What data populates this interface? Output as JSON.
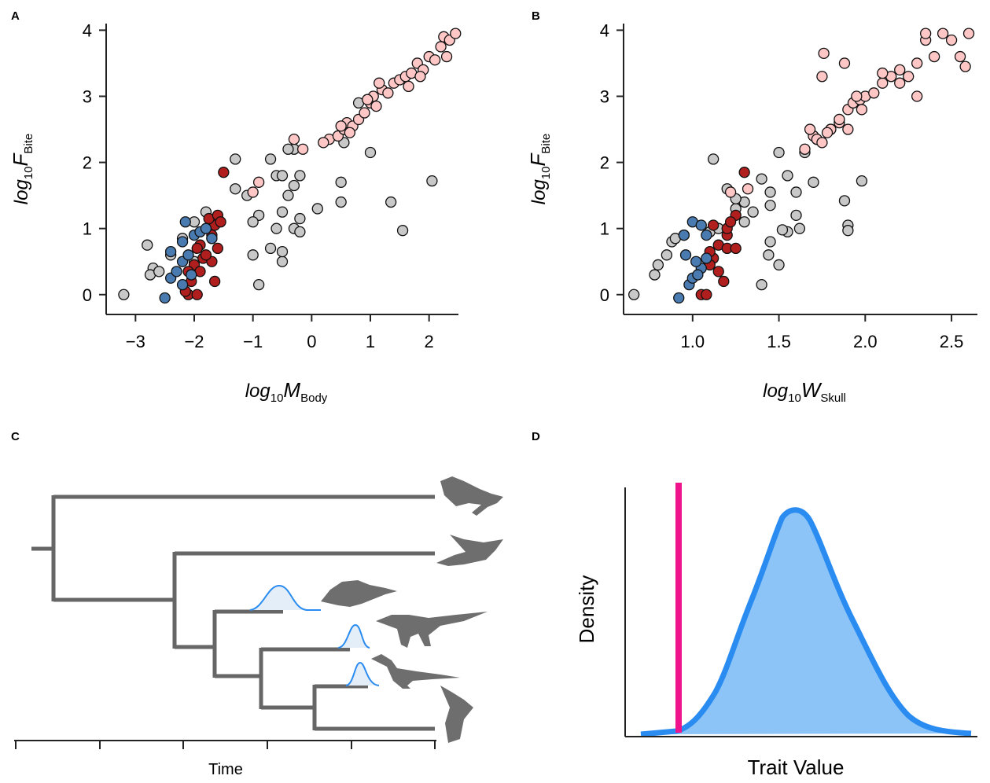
{
  "chart_data": [
    {
      "type": "scatter",
      "panel_label": "A",
      "xlabel": {
        "base": "log",
        "base_sub": "10",
        "var": "M",
        "var_sub": "Body"
      },
      "ylabel": {
        "base": "log",
        "base_sub": "10",
        "var": "F",
        "var_sub": "Bite"
      },
      "xlim": [
        -3.5,
        2.5
      ],
      "ylim": [
        -0.3,
        4.1
      ],
      "xticks": [
        {
          "value": -3,
          "label": "−3"
        },
        {
          "value": -2,
          "label": "−2"
        },
        {
          "value": -1,
          "label": "−1"
        },
        0,
        1,
        2
      ],
      "yticks": [
        0,
        1,
        2,
        3,
        4
      ],
      "series": [
        {
          "color": "#c8c8c8",
          "x": [
            -3.2,
            -2.8,
            -2.7,
            -2.75,
            -2.6,
            -2.4,
            -2.2,
            -2.0,
            -1.8,
            -1.6,
            -1.3,
            -1.1,
            -1.3,
            -0.7,
            -0.6,
            -0.5,
            -0.3,
            -0.9,
            -0.5,
            -0.3,
            -0.2,
            -0.2,
            0.1,
            0.5,
            0.5,
            -0.5,
            -0.5,
            -0.6,
            -1.0,
            -0.9,
            -0.7,
            1.35,
            1.55,
            2.05,
            -1.7,
            -2.0,
            -0.3,
            1.0,
            -0.4,
            -1.0,
            -0.4,
            0.55,
            0.8,
            -0.2
          ],
          "values": [
            0.0,
            0.75,
            0.4,
            0.3,
            0.35,
            0.6,
            0.85,
            1.1,
            1.25,
            1.1,
            1.6,
            1.5,
            2.05,
            2.05,
            1.8,
            1.8,
            1.65,
            1.2,
            1.25,
            1.0,
            1.15,
            0.95,
            1.3,
            1.7,
            1.4,
            0.5,
            0.65,
            1.0,
            0.6,
            0.15,
            0.7,
            1.4,
            0.97,
            1.72,
            0.85,
            0.5,
            2.2,
            2.15,
            2.2,
            1.1,
            1.5,
            2.3,
            2.9,
            1.8
          ]
        },
        {
          "color": "#ffc6c6",
          "x": [
            0.3,
            0.45,
            0.55,
            0.6,
            0.7,
            0.8,
            0.9,
            1.0,
            1.05,
            1.1,
            1.2,
            1.3,
            1.4,
            1.5,
            1.6,
            1.7,
            1.8,
            1.9,
            2.0,
            2.1,
            2.2,
            2.25,
            2.35,
            2.45,
            2.3,
            1.65,
            0.95,
            0.5,
            -0.3,
            -0.15,
            -1.0,
            -0.9,
            0.2,
            0.65,
            1.15,
            1.85
          ],
          "values": [
            2.35,
            2.4,
            2.5,
            2.6,
            2.55,
            2.65,
            2.75,
            2.9,
            3.0,
            2.85,
            3.1,
            3.05,
            3.2,
            3.25,
            3.3,
            3.35,
            3.5,
            3.4,
            3.6,
            3.55,
            3.75,
            3.9,
            3.85,
            3.95,
            3.6,
            3.15,
            2.95,
            2.55,
            2.35,
            2.2,
            1.55,
            1.7,
            2.3,
            2.45,
            3.2,
            3.3
          ]
        },
        {
          "color": "#b01e1e",
          "x": [
            -1.5,
            -1.9,
            -1.7,
            -1.65,
            -1.75,
            -1.6,
            -1.85,
            -2.0,
            -2.1,
            -1.9,
            -1.7,
            -2.1,
            -1.95,
            -2.15,
            -1.65,
            -1.8,
            -2.05,
            -1.6,
            -1.55,
            -1.95
          ],
          "values": [
            1.85,
            0.75,
            0.9,
            1.05,
            1.15,
            0.7,
            0.55,
            0.45,
            0.35,
            0.35,
            0.5,
            0.0,
            0.0,
            0.05,
            0.2,
            0.6,
            0.2,
            1.2,
            1.1,
            0.7
          ]
        },
        {
          "color": "#4a7bb0",
          "x": [
            -2.5,
            -2.4,
            -2.3,
            -2.2,
            -2.4,
            -2.15,
            -2.2,
            -2.0,
            -1.9,
            -1.8,
            -2.05,
            -2.2,
            -1.7,
            -2.1
          ],
          "values": [
            -0.05,
            0.25,
            0.35,
            0.5,
            0.65,
            1.1,
            0.8,
            0.9,
            0.95,
            1.0,
            0.3,
            0.15,
            0.85,
            0.6
          ]
        }
      ]
    },
    {
      "type": "scatter",
      "panel_label": "B",
      "xlabel": {
        "base": "log",
        "base_sub": "10",
        "var": "W",
        "var_sub": "Skull"
      },
      "ylabel": {
        "base": "log",
        "base_sub": "10",
        "var": "F",
        "var_sub": "Bite"
      },
      "xlim": [
        0.6,
        2.65
      ],
      "ylim": [
        -0.3,
        4.1
      ],
      "xticks": [
        {
          "value": 1,
          "label": "1.0"
        },
        1.5,
        {
          "value": 2,
          "label": "2.0"
        },
        2.5
      ],
      "yticks": [
        0,
        1,
        2,
        3,
        4
      ],
      "series": [
        {
          "color": "#c8c8c8",
          "x": [
            0.66,
            0.78,
            0.8,
            0.85,
            0.88,
            0.9,
            0.95,
            1.1,
            1.15,
            1.12,
            1.2,
            1.25,
            1.3,
            1.35,
            1.4,
            1.45,
            1.5,
            1.55,
            1.6,
            1.7,
            1.6,
            1.62,
            1.55,
            1.5,
            1.45,
            1.4,
            1.52,
            1.45,
            1.9,
            1.88,
            1.98,
            1.9,
            1.72,
            1.65,
            1.8,
            1.44,
            1.3,
            1.25
          ],
          "values": [
            0.0,
            0.3,
            0.45,
            0.6,
            0.8,
            0.85,
            0.9,
            0.95,
            1.0,
            2.05,
            1.6,
            1.3,
            1.4,
            1.25,
            1.75,
            1.55,
            2.15,
            1.8,
            1.55,
            1.7,
            1.2,
            1.0,
            0.95,
            0.45,
            0.8,
            0.15,
            0.98,
            1.35,
            1.05,
            1.42,
            1.72,
            0.97,
            2.35,
            2.15,
            2.5,
            0.6,
            1.1,
            1.45
          ]
        },
        {
          "color": "#ffc6c6",
          "x": [
            1.32,
            1.22,
            1.65,
            1.7,
            1.72,
            1.75,
            1.8,
            1.85,
            1.85,
            1.9,
            1.9,
            1.93,
            1.97,
            2.0,
            2.05,
            2.1,
            2.15,
            2.2,
            2.25,
            2.3,
            2.35,
            2.4,
            2.45,
            2.5,
            2.55,
            2.58,
            2.6,
            2.3,
            2.35,
            1.75,
            1.76,
            1.88,
            2.1,
            1.95,
            1.78,
            1.68,
            2.2,
            1.98
          ],
          "values": [
            1.6,
            1.55,
            2.2,
            2.4,
            2.35,
            2.3,
            2.5,
            2.6,
            2.65,
            2.5,
            2.8,
            2.9,
            2.95,
            3.0,
            3.05,
            3.2,
            3.3,
            3.2,
            3.3,
            3.5,
            3.85,
            3.6,
            3.95,
            3.85,
            3.6,
            3.45,
            3.95,
            3.0,
            3.95,
            3.3,
            3.65,
            3.5,
            3.35,
            3.0,
            2.45,
            2.5,
            3.4,
            2.8
          ]
        },
        {
          "color": "#b01e1e",
          "x": [
            1.3,
            1.2,
            1.15,
            1.12,
            1.1,
            1.2,
            1.25,
            1.15,
            1.18,
            1.05,
            1.08,
            1.2,
            1.25,
            1.22,
            1.1,
            1.12
          ],
          "values": [
            1.85,
            0.9,
            0.75,
            0.55,
            0.45,
            0.7,
            0.7,
            0.35,
            0.2,
            0.0,
            0.0,
            1.0,
            1.2,
            1.1,
            0.65,
            1.05
          ]
        },
        {
          "color": "#4a7bb0",
          "x": [
            0.92,
            0.98,
            1.0,
            1.05,
            1.02,
            1.08,
            0.95,
            1.0,
            1.05,
            0.96,
            1.03,
            1.08
          ],
          "values": [
            -0.05,
            0.15,
            0.25,
            0.4,
            0.5,
            0.55,
            0.9,
            1.1,
            1.05,
            0.6,
            0.3,
            0.9
          ]
        }
      ]
    }
  ],
  "panel_c": {
    "label": "C",
    "xlabel": "Time"
  },
  "panel_d": {
    "label": "D",
    "ylabel": "Density",
    "xlabel": "Trait Value"
  }
}
